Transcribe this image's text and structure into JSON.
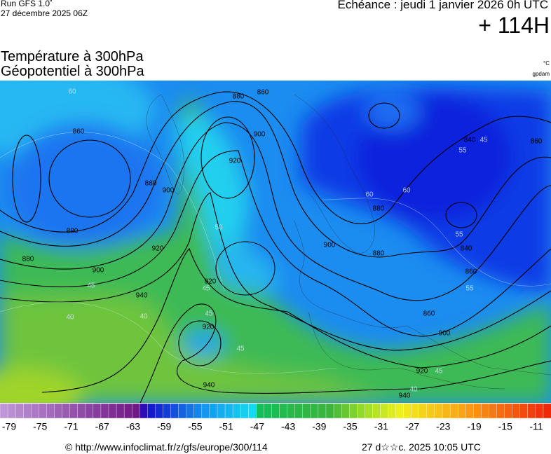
{
  "header": {
    "run": "Run GFS 1.0˚",
    "date": "27 décembre 2025 06Z",
    "echeance": "Echéance : jeudi 1 janvier 2026 0h UTC",
    "lead": "+ 114H"
  },
  "titles": {
    "temperature": "Température à 300hPa",
    "geopotential": "Géopotentiel à 300hPa",
    "unit_temp": "°C",
    "unit_geo": "gpdam"
  },
  "map": {
    "contour_labels": [
      "860",
      "880",
      "860",
      "900",
      "920",
      "880",
      "900",
      "880",
      "880",
      "900",
      "920",
      "940",
      "920",
      "920",
      "940",
      "900",
      "880",
      "880",
      "860",
      "900",
      "920",
      "940",
      "840",
      "860",
      "840",
      "860"
    ],
    "temperature_labels": [
      "60",
      "60",
      "60",
      "55",
      "55",
      "55",
      "50",
      "45",
      "45",
      "45",
      "40",
      "40",
      "45",
      "45",
      "40",
      "45"
    ]
  },
  "colorbar": {
    "labels": [
      "-79",
      "-75",
      "-71",
      "-67",
      "-63",
      "-59",
      "-55",
      "-51",
      "-47",
      "-43",
      "-39",
      "-35",
      "-31",
      "-27",
      "-23",
      "-19",
      "-15",
      "-11"
    ]
  },
  "footer": {
    "url": "© http://www.infoclimat.fr/z/gfs/europe/300/114",
    "timestamp": "27 d☆☆c. 2025 10:05 UTC"
  }
}
